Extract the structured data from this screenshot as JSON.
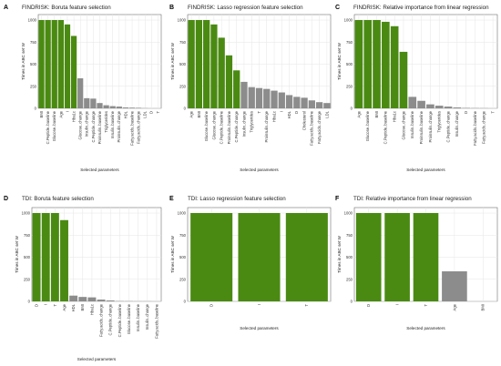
{
  "colors": {
    "selected": "#4a8a12",
    "not_selected": "#8c8c8c",
    "grid": "#e6e6e6"
  },
  "chart_data": [
    {
      "type": "bar",
      "letter": "A",
      "title": "FINDRISK: Boruta feature selection",
      "xlabel": "Selected parameters",
      "ylabel": "Times in ABC set W",
      "ylim": [
        0,
        1000
      ],
      "yticks": [
        0,
        250,
        500,
        750,
        1000
      ],
      "grid": true,
      "categories": [
        "BMI",
        "C.Peptide..baseline",
        "Glucose..baseline",
        "Age",
        "I",
        "Hba1c",
        "Glucose..change",
        "Insulin..change",
        "C.Peptide..change",
        "Proinsulin..baseline",
        "Triglycerides",
        "Insulin..baseline",
        "Proinsulin..change",
        "HDL",
        "Fatty.acids..baseline",
        "Fatty.acids..change",
        "LDL",
        "D",
        "T"
      ],
      "values": [
        1000,
        1000,
        1000,
        1000,
        950,
        820,
        340,
        115,
        110,
        60,
        35,
        25,
        20,
        10,
        8,
        6,
        2,
        0,
        0
      ],
      "selected": [
        true,
        true,
        true,
        true,
        true,
        true,
        false,
        false,
        false,
        false,
        false,
        false,
        false,
        false,
        false,
        false,
        false,
        false,
        false
      ]
    },
    {
      "type": "bar",
      "letter": "B",
      "title": "FINDRISK: Lasso regression feature selection",
      "xlabel": "Selected parameters",
      "ylabel": "Times in ABC set W",
      "ylim": [
        0,
        1000
      ],
      "yticks": [
        0,
        250,
        500,
        750,
        1000
      ],
      "grid": true,
      "categories": [
        "Age",
        "BMI",
        "Glucose..baseline",
        "Glucose..change",
        "C.Peptide..baseline",
        "Proinsulin..baseline",
        "C.Peptide..change",
        "Insulin..change",
        "Triglycerides",
        "T",
        "Proinsulin..change",
        "Hba1c",
        "I",
        "HDL",
        "D",
        "Cholesterol",
        "Fatty.acids..baseline",
        "Fatty.acids..change",
        "LDL"
      ],
      "values": [
        1000,
        1000,
        1000,
        950,
        800,
        600,
        430,
        300,
        240,
        230,
        220,
        200,
        180,
        150,
        130,
        120,
        90,
        70,
        60
      ],
      "selected": [
        true,
        true,
        true,
        true,
        true,
        true,
        true,
        false,
        false,
        false,
        false,
        false,
        false,
        false,
        false,
        false,
        false,
        false,
        false
      ]
    },
    {
      "type": "bar",
      "letter": "C",
      "title": "FINDRISK: Relative importance from linear regression",
      "xlabel": "Selected parameters",
      "ylabel": "Times in ABC set W",
      "ylim": [
        0,
        1000
      ],
      "yticks": [
        0,
        250,
        500,
        750,
        1000
      ],
      "grid": true,
      "categories": [
        "Age",
        "Glucose..baseline",
        "BMI",
        "C.Peptide..baseline",
        "Hba1c",
        "Glucose..change",
        "Insulin..baseline",
        "Proinsulin..baseline",
        "Proinsulin..change",
        "Triglycerides",
        "C.Peptide..change",
        "Insulin..change",
        "D",
        "Fatty.acids..baseline",
        "Fatty.acids..change",
        "T"
      ],
      "values": [
        1000,
        1000,
        1000,
        980,
        930,
        640,
        130,
        85,
        45,
        30,
        20,
        10,
        5,
        3,
        2,
        0
      ],
      "selected": [
        true,
        true,
        true,
        true,
        true,
        true,
        false,
        false,
        false,
        false,
        false,
        false,
        false,
        false,
        false,
        false
      ]
    },
    {
      "type": "bar",
      "letter": "D",
      "title": "TDI: Boruta feature selection",
      "xlabel": "Selected parameters",
      "ylabel": "Times in ABC set W",
      "ylim": [
        0,
        1000
      ],
      "yticks": [
        0,
        250,
        500,
        750,
        1000
      ],
      "grid": true,
      "categories": [
        "D",
        "I",
        "T",
        "Age",
        "HDL",
        "BMI",
        "Hba1c",
        "Fatty.acids..change",
        "C.Peptide..change",
        "C.Peptide..baseline",
        "Glucose..baseline",
        "Insulin..baseline",
        "Insulin..change",
        "Fatty.acids..baseline"
      ],
      "values": [
        1000,
        1000,
        1000,
        920,
        65,
        50,
        45,
        20,
        10,
        3,
        2,
        1,
        1,
        0
      ],
      "selected": [
        true,
        true,
        true,
        true,
        false,
        false,
        false,
        false,
        false,
        false,
        false,
        false,
        false,
        false
      ]
    },
    {
      "type": "bar",
      "letter": "E",
      "title": "TDI: Lasso regression feature selection",
      "xlabel": "Selected parameters",
      "ylabel": "Times in ABC set W",
      "ylim": [
        0,
        1000
      ],
      "yticks": [
        0,
        250,
        500,
        750,
        1000
      ],
      "grid": true,
      "categories": [
        "D",
        "I",
        "T"
      ],
      "values": [
        1000,
        1000,
        1000
      ],
      "selected": [
        true,
        true,
        true
      ]
    },
    {
      "type": "bar",
      "letter": "F",
      "title": "TDI: Relative importance from linear regression",
      "xlabel": "Selected parameters",
      "ylabel": "Times in ABC set W",
      "ylim": [
        0,
        1000
      ],
      "yticks": [
        0,
        250,
        500,
        750,
        1000
      ],
      "grid": true,
      "categories": [
        "D",
        "I",
        "T",
        "Age",
        "BMI"
      ],
      "values": [
        1000,
        1000,
        1000,
        340,
        0
      ],
      "selected": [
        true,
        true,
        true,
        false,
        false
      ]
    }
  ]
}
